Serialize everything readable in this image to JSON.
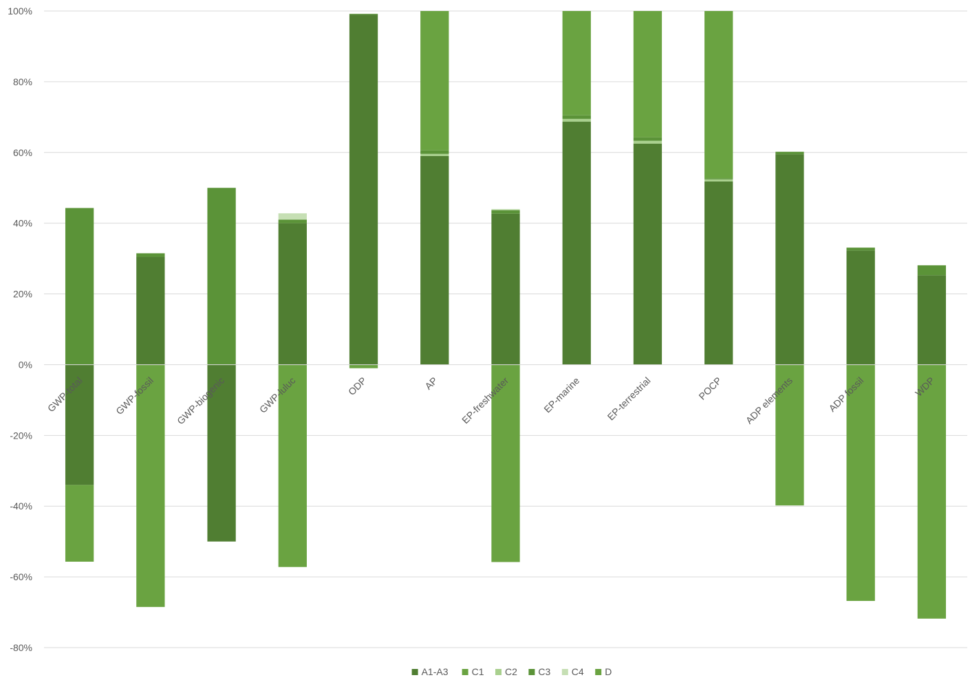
{
  "chart_data": {
    "type": "bar",
    "stacked": true,
    "title": "",
    "xlabel": "",
    "ylabel": "",
    "ylim": [
      -0.8,
      1.0
    ],
    "y_ticks": [
      -0.8,
      -0.6,
      -0.4,
      -0.2,
      0,
      0.2,
      0.4,
      0.6,
      0.8,
      1.0
    ],
    "y_tick_labels": [
      "-80%",
      "-60%",
      "-40%",
      "-20%",
      "0%",
      "20%",
      "40%",
      "60%",
      "80%",
      "100%"
    ],
    "grid": true,
    "legend_position": "bottom",
    "categories": [
      "GWP-total",
      "GWP-fossil",
      "GWP-biogenic",
      "GWP-luluc",
      "ODP",
      "AP",
      "EP-freshwater",
      "EP-marine",
      "EP-terrestrial",
      "POCP",
      "ADP elements",
      "ADP fossil",
      "WDP"
    ],
    "series": [
      {
        "name": "A1-A3",
        "color": "#507E32",
        "values": [
          -0.34,
          0.305,
          -0.5,
          0.4,
          0.99,
          0.59,
          0.427,
          0.687,
          0.625,
          0.518,
          0.595,
          0.323,
          0.253
        ]
      },
      {
        "name": "C1",
        "color": "#6AA341",
        "values": [
          0.0,
          0.0,
          0.0,
          0.0,
          0.0,
          0.0,
          0.0,
          0.0,
          0.0,
          0.0,
          0.0,
          0.0,
          0.0
        ]
      },
      {
        "name": "C2",
        "color": "#A9D08E",
        "values": [
          0.0,
          0.0,
          0.0,
          0.0,
          0.0,
          0.006,
          0.0,
          0.008,
          0.008,
          0.006,
          0.0,
          0.0,
          0.0
        ]
      },
      {
        "name": "C3",
        "color": "#5B9338",
        "values": [
          0.443,
          0.01,
          0.5,
          0.01,
          0.002,
          0.01,
          0.01,
          0.01,
          0.01,
          0.003,
          0.007,
          0.008,
          0.028
        ]
      },
      {
        "name": "C4",
        "color": "#C6DFB4",
        "values": [
          0.0,
          0.0,
          0.0,
          0.018,
          0.0,
          0.0,
          0.003,
          0.0,
          0.0,
          0.0,
          0.0,
          0.0,
          0.0
        ]
      },
      {
        "name": "D",
        "color": "#6AA341",
        "values": [
          -0.217,
          -0.685,
          0.0,
          -0.572,
          -0.01,
          0.394,
          -0.558,
          0.295,
          0.357,
          0.473,
          -0.398,
          -0.668,
          -0.718
        ]
      }
    ]
  }
}
